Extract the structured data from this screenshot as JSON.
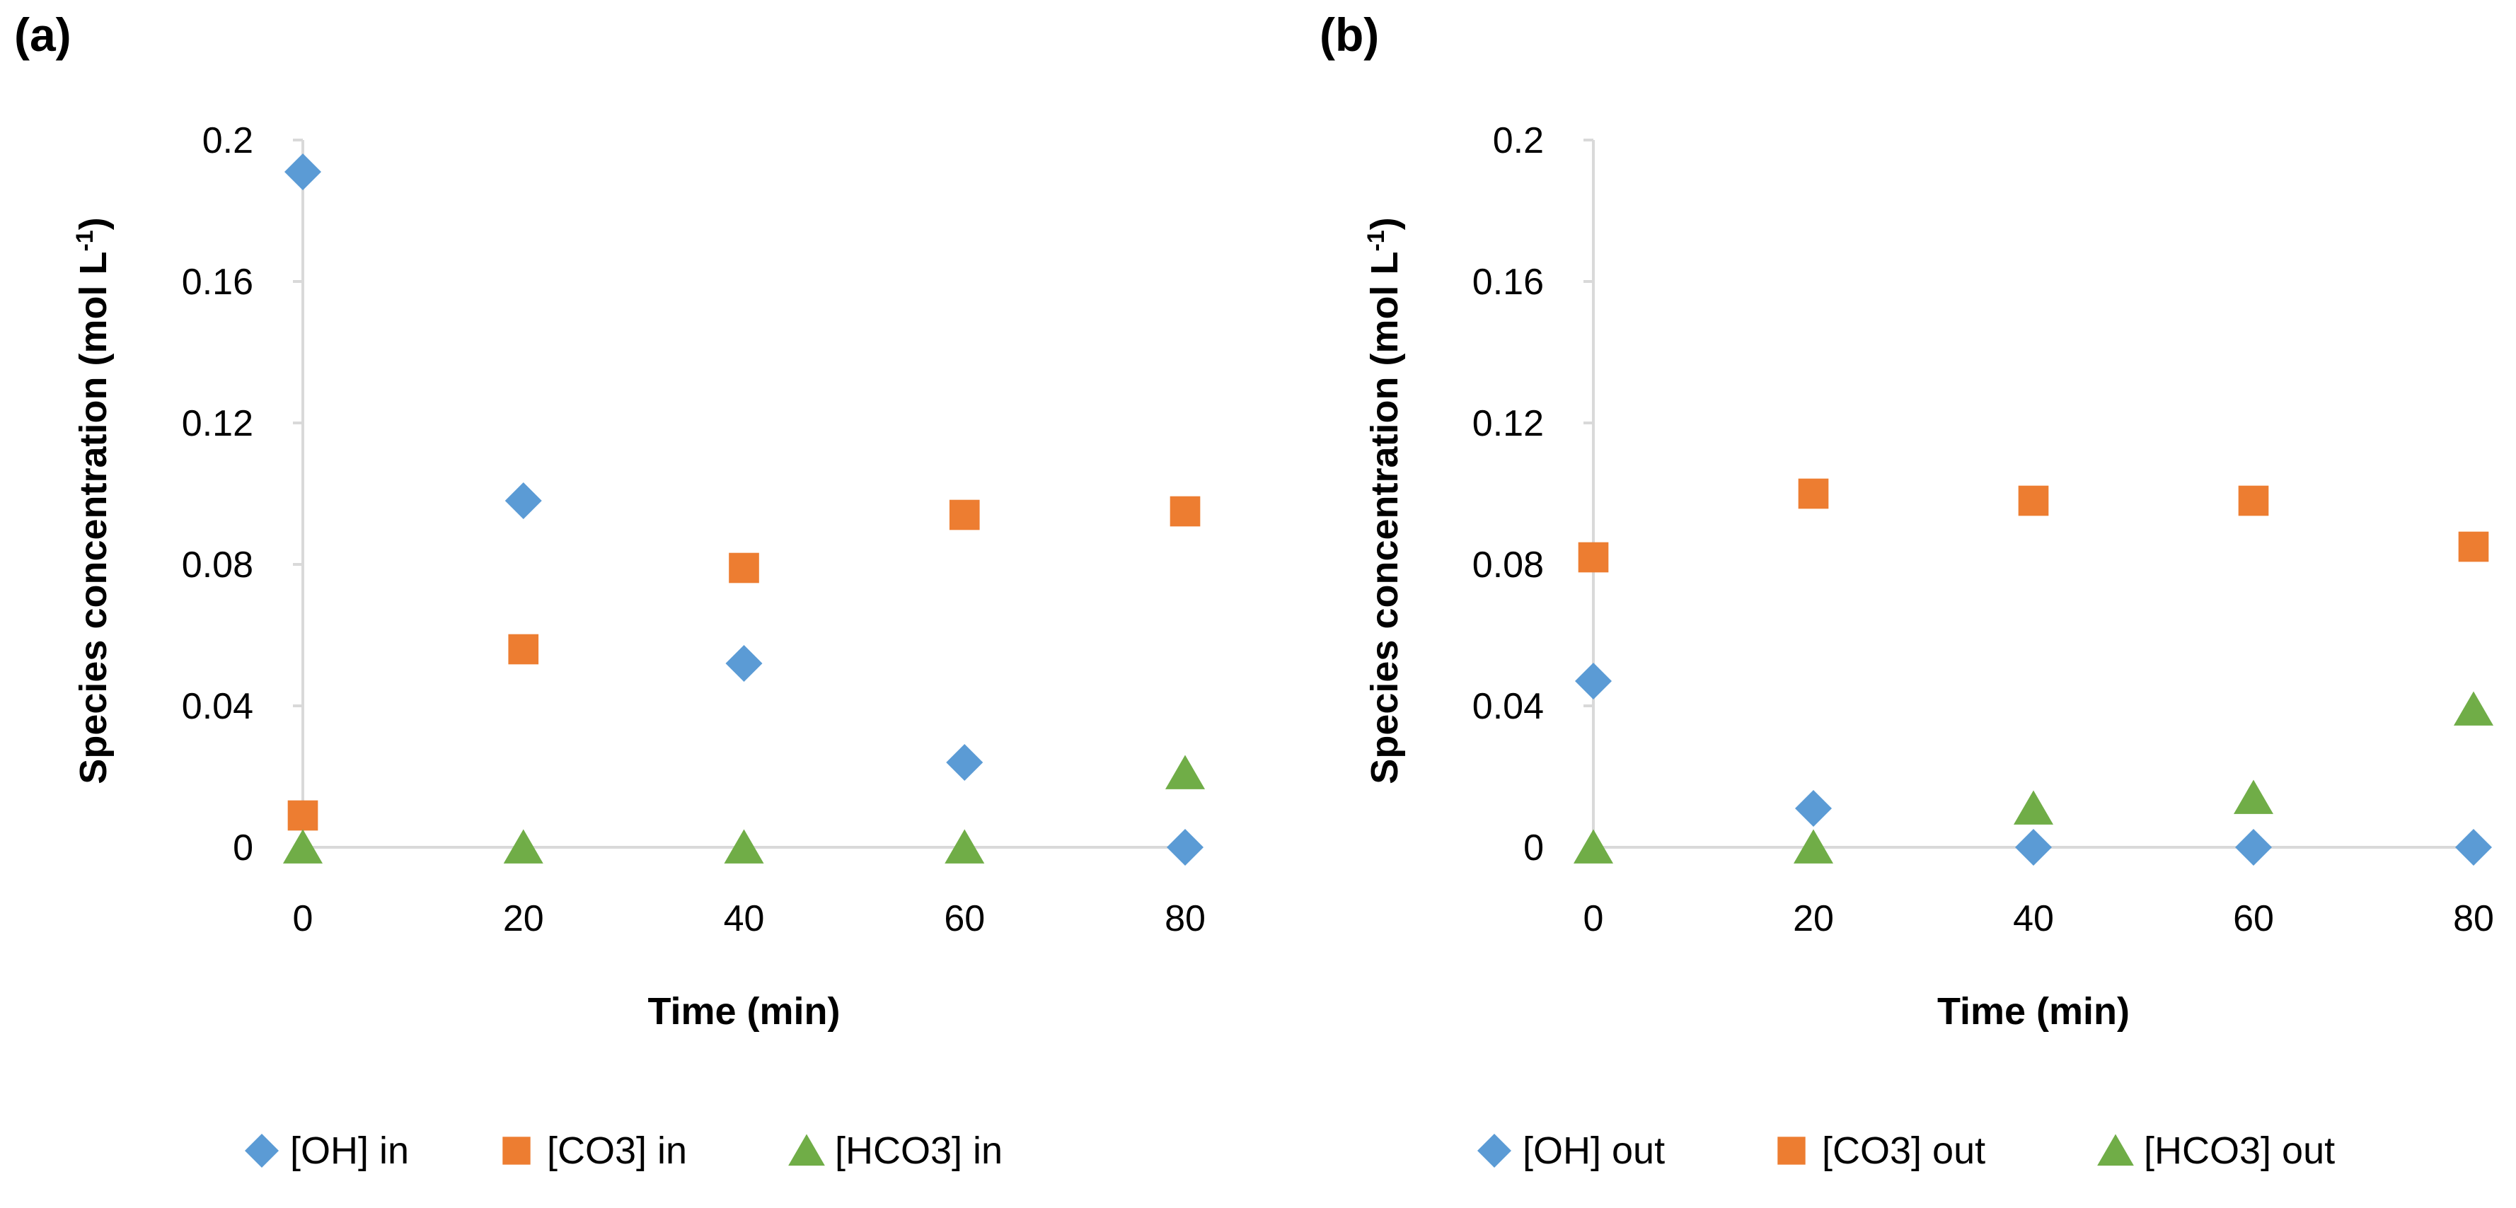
{
  "chart_data": [
    {
      "type": "scatter",
      "panel_label": "(a)",
      "xlabel": "Time (min)",
      "ylabel": "Species concentration (mol L",
      "ylabel_sup": "-1",
      "ylabel_close": ")",
      "xlim": [
        0,
        80
      ],
      "ylim": [
        0,
        0.2
      ],
      "x_ticks": [
        "0",
        "20",
        "40",
        "60",
        "80"
      ],
      "y_ticks": [
        "0",
        "0.04",
        "0.08",
        "0.12",
        "0.16",
        "0.2"
      ],
      "grid": false,
      "legend_position": "bottom",
      "series": [
        {
          "name": "[OH] in",
          "marker": "diamond",
          "color": "#5B9BD5",
          "x": [
            0,
            20,
            40,
            60,
            80
          ],
          "y": [
            0.191,
            0.098,
            0.052,
            0.024,
            0.0
          ]
        },
        {
          "name": "[CO3] in",
          "marker": "square",
          "color": "#ED7D31",
          "x": [
            0,
            20,
            40,
            60,
            80
          ],
          "y": [
            0.009,
            0.056,
            0.079,
            0.094,
            0.095
          ]
        },
        {
          "name": "[HCO3] in",
          "marker": "triangle",
          "color": "#70AD47",
          "x": [
            0,
            20,
            40,
            60,
            80
          ],
          "y": [
            0.0,
            0.0,
            0.0,
            0.0,
            0.021
          ]
        }
      ]
    },
    {
      "type": "scatter",
      "panel_label": "(b)",
      "xlabel": "Time (min)",
      "ylabel": "Species concentration (mol L",
      "ylabel_sup": "-1",
      "ylabel_close": ")",
      "xlim": [
        0,
        80
      ],
      "ylim": [
        0,
        0.2
      ],
      "x_ticks": [
        "0",
        "20",
        "40",
        "60",
        "80"
      ],
      "y_ticks": [
        "0",
        "0.04",
        "0.08",
        "0.12",
        "0.16",
        "0.2"
      ],
      "grid": false,
      "legend_position": "bottom",
      "series": [
        {
          "name": "[OH] out",
          "marker": "diamond",
          "color": "#5B9BD5",
          "x": [
            0,
            20,
            40,
            60,
            80
          ],
          "y": [
            0.047,
            0.011,
            0.0,
            0.0,
            0.0
          ]
        },
        {
          "name": "[CO3] out",
          "marker": "square",
          "color": "#ED7D31",
          "x": [
            0,
            20,
            40,
            60,
            80
          ],
          "y": [
            0.082,
            0.1,
            0.098,
            0.098,
            0.085
          ]
        },
        {
          "name": "[HCO3] out",
          "marker": "triangle",
          "color": "#70AD47",
          "x": [
            0,
            20,
            40,
            60,
            80
          ],
          "y": [
            0.0,
            0.0,
            0.011,
            0.014,
            0.039
          ]
        }
      ]
    }
  ]
}
